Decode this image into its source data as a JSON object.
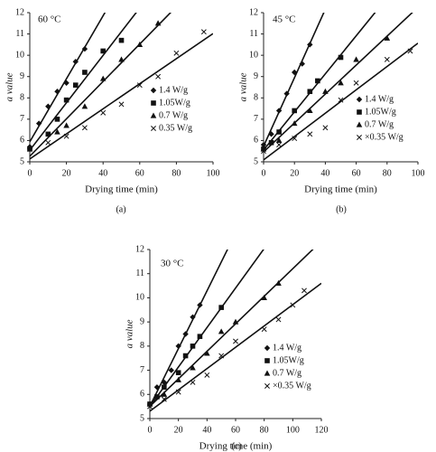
{
  "chart_data": [
    {
      "type": "scatter",
      "title": "60 °C",
      "x_label": "Drying time (min)",
      "y_label": "a value",
      "caption": "(a)",
      "xlim": [
        0,
        100
      ],
      "xticks": [
        0,
        20,
        40,
        60,
        80,
        100
      ],
      "ylim": [
        5,
        12
      ],
      "yticks": [
        5,
        6,
        7,
        8,
        9,
        10,
        11,
        12
      ],
      "trendline": true,
      "series": [
        {
          "name": "1.4 W/g",
          "marker": "diamond",
          "color": "#111111",
          "x": [
            0,
            5,
            10,
            15,
            20,
            25,
            30
          ],
          "values": [
            5.7,
            6.8,
            7.6,
            8.3,
            8.7,
            9.7,
            10.3
          ]
        },
        {
          "name": "1.05W/g",
          "marker": "square",
          "color": "#111111",
          "x": [
            0,
            10,
            15,
            20,
            25,
            30,
            40,
            50
          ],
          "values": [
            5.6,
            6.3,
            7.0,
            7.9,
            8.6,
            9.2,
            10.2,
            10.7
          ]
        },
        {
          "name": "0.7 W/g",
          "marker": "triangle",
          "color": "#111111",
          "x": [
            0,
            15,
            20,
            30,
            40,
            50,
            60,
            70
          ],
          "values": [
            5.7,
            6.4,
            6.7,
            7.6,
            8.9,
            9.8,
            10.5,
            11.5
          ]
        },
        {
          "name": "0.35 W/g",
          "marker": "cross",
          "color": "#111111",
          "x": [
            0,
            10,
            20,
            30,
            40,
            50,
            60,
            70,
            80,
            95
          ],
          "values": [
            5.6,
            5.9,
            6.2,
            6.6,
            7.3,
            7.7,
            8.6,
            9.0,
            10.1,
            11.1
          ]
        }
      ]
    },
    {
      "type": "scatter",
      "title": "45 °C",
      "x_label": "Drying time (min)",
      "y_label": "a value",
      "caption": "(b)",
      "xlim": [
        0,
        100
      ],
      "xticks": [
        0,
        20,
        40,
        60,
        80,
        100
      ],
      "ylim": [
        5,
        12
      ],
      "yticks": [
        5,
        6,
        7,
        8,
        9,
        10,
        11,
        12
      ],
      "trendline": true,
      "series": [
        {
          "name": "1.4 W/g",
          "marker": "diamond",
          "color": "#111111",
          "x": [
            0,
            5,
            10,
            15,
            20,
            25,
            30
          ],
          "values": [
            5.8,
            6.3,
            7.4,
            8.2,
            9.2,
            9.6,
            10.5
          ]
        },
        {
          "name": "1.05W/g",
          "marker": "square",
          "color": "#111111",
          "x": [
            0,
            5,
            10,
            20,
            30,
            35,
            50
          ],
          "values": [
            5.6,
            5.9,
            6.4,
            7.4,
            8.3,
            8.8,
            9.9
          ]
        },
        {
          "name": "0.7 W/g",
          "marker": "triangle",
          "color": "#111111",
          "x": [
            0,
            10,
            20,
            30,
            40,
            50,
            60,
            80
          ],
          "values": [
            5.6,
            6.0,
            6.8,
            7.4,
            8.3,
            8.7,
            9.8,
            10.8
          ]
        },
        {
          "name": "×0.35 W/g",
          "marker": "cross",
          "color": "#111111",
          "x": [
            0,
            10,
            20,
            30,
            40,
            50,
            60,
            80,
            95
          ],
          "values": [
            5.5,
            5.8,
            6.1,
            6.3,
            6.6,
            7.9,
            8.7,
            9.8,
            10.2
          ]
        }
      ]
    },
    {
      "type": "scatter",
      "title": "30 °C",
      "x_label": "Drying time (min)",
      "y_label": "a value",
      "caption": "(c)",
      "xlim": [
        0,
        120
      ],
      "xticks": [
        0,
        20,
        40,
        60,
        80,
        100,
        120
      ],
      "ylim": [
        5,
        12
      ],
      "yticks": [
        5,
        6,
        7,
        8,
        9,
        10,
        11,
        12
      ],
      "trendline": true,
      "series": [
        {
          "name": "1.4 W/g",
          "marker": "diamond",
          "color": "#111111",
          "x": [
            0,
            5,
            10,
            15,
            20,
            25,
            30,
            35
          ],
          "values": [
            5.6,
            6.3,
            6.5,
            7.0,
            8.0,
            8.5,
            9.2,
            9.7
          ]
        },
        {
          "name": "1.05W/g",
          "marker": "square",
          "color": "#111111",
          "x": [
            0,
            5,
            10,
            20,
            25,
            30,
            35,
            50
          ],
          "values": [
            5.6,
            5.9,
            6.3,
            6.9,
            7.6,
            8.0,
            8.4,
            9.6
          ]
        },
        {
          "name": "0.7 W/g",
          "marker": "triangle",
          "color": "#111111",
          "x": [
            0,
            10,
            20,
            30,
            40,
            50,
            60,
            80,
            90
          ],
          "values": [
            5.6,
            6.0,
            6.6,
            7.1,
            7.7,
            8.6,
            9.0,
            10.0,
            10.6
          ]
        },
        {
          "name": "×0.35 W/g",
          "marker": "cross",
          "color": "#111111",
          "x": [
            0,
            10,
            20,
            30,
            40,
            50,
            60,
            80,
            90,
            100,
            108
          ],
          "values": [
            5.5,
            5.8,
            6.1,
            6.5,
            6.8,
            7.6,
            8.2,
            8.7,
            9.1,
            9.7,
            10.3
          ]
        }
      ]
    }
  ]
}
